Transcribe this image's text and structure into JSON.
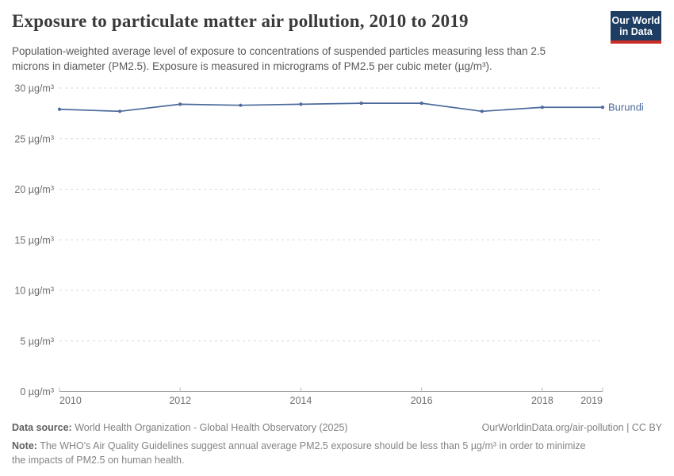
{
  "header": {
    "title": "Exposure to particulate matter air pollution, 2010 to 2019",
    "subtitle": "Population-weighted average level of exposure to concentrations of suspended particles measuring less than 2.5 microns in diameter (PM2.5). Exposure is measured in micrograms of PM2.5 per cubic meter (µg/m³).",
    "logo": {
      "line1": "Our World",
      "line2": "in Data",
      "bg_color": "#1d3d63",
      "stripe_color": "#cb2d27"
    }
  },
  "chart_data": {
    "type": "line",
    "title": "Exposure to particulate matter air pollution, 2010 to 2019",
    "x": [
      2010,
      2011,
      2012,
      2013,
      2014,
      2015,
      2016,
      2017,
      2018,
      2019
    ],
    "series": [
      {
        "name": "Burundi",
        "color": "#4c6a9c",
        "values": [
          27.9,
          27.7,
          28.4,
          28.3,
          28.4,
          28.5,
          28.5,
          27.7,
          28.1,
          28.1
        ]
      }
    ],
    "ylim": [
      0,
      30
    ],
    "yticks": [
      0,
      5,
      10,
      15,
      20,
      25,
      30
    ],
    "ytick_format": "{v} µg/m³",
    "xticks": [
      2010,
      2012,
      2014,
      2016,
      2018,
      2019
    ],
    "grid": "dashed-horizontal",
    "legend": "end-of-line-label",
    "colors": {
      "gridline": "#d9d9d9",
      "axis_line": "#a5a5a5",
      "tick_mark": "#bbbbbb",
      "tick_label": "#6e6e6e"
    }
  },
  "footer": {
    "datasource_label": "Data source:",
    "datasource_text": " World Health Organization - Global Health Observatory (2025)",
    "license_text": "OurWorldinData.org/air-pollution | CC BY",
    "note_label": "Note:",
    "note_text": " The WHO's Air Quality Guidelines suggest annual average PM2.5 exposure should be less than 5 µg/m³ in order to minimize the impacts of PM2.5 on human health."
  }
}
